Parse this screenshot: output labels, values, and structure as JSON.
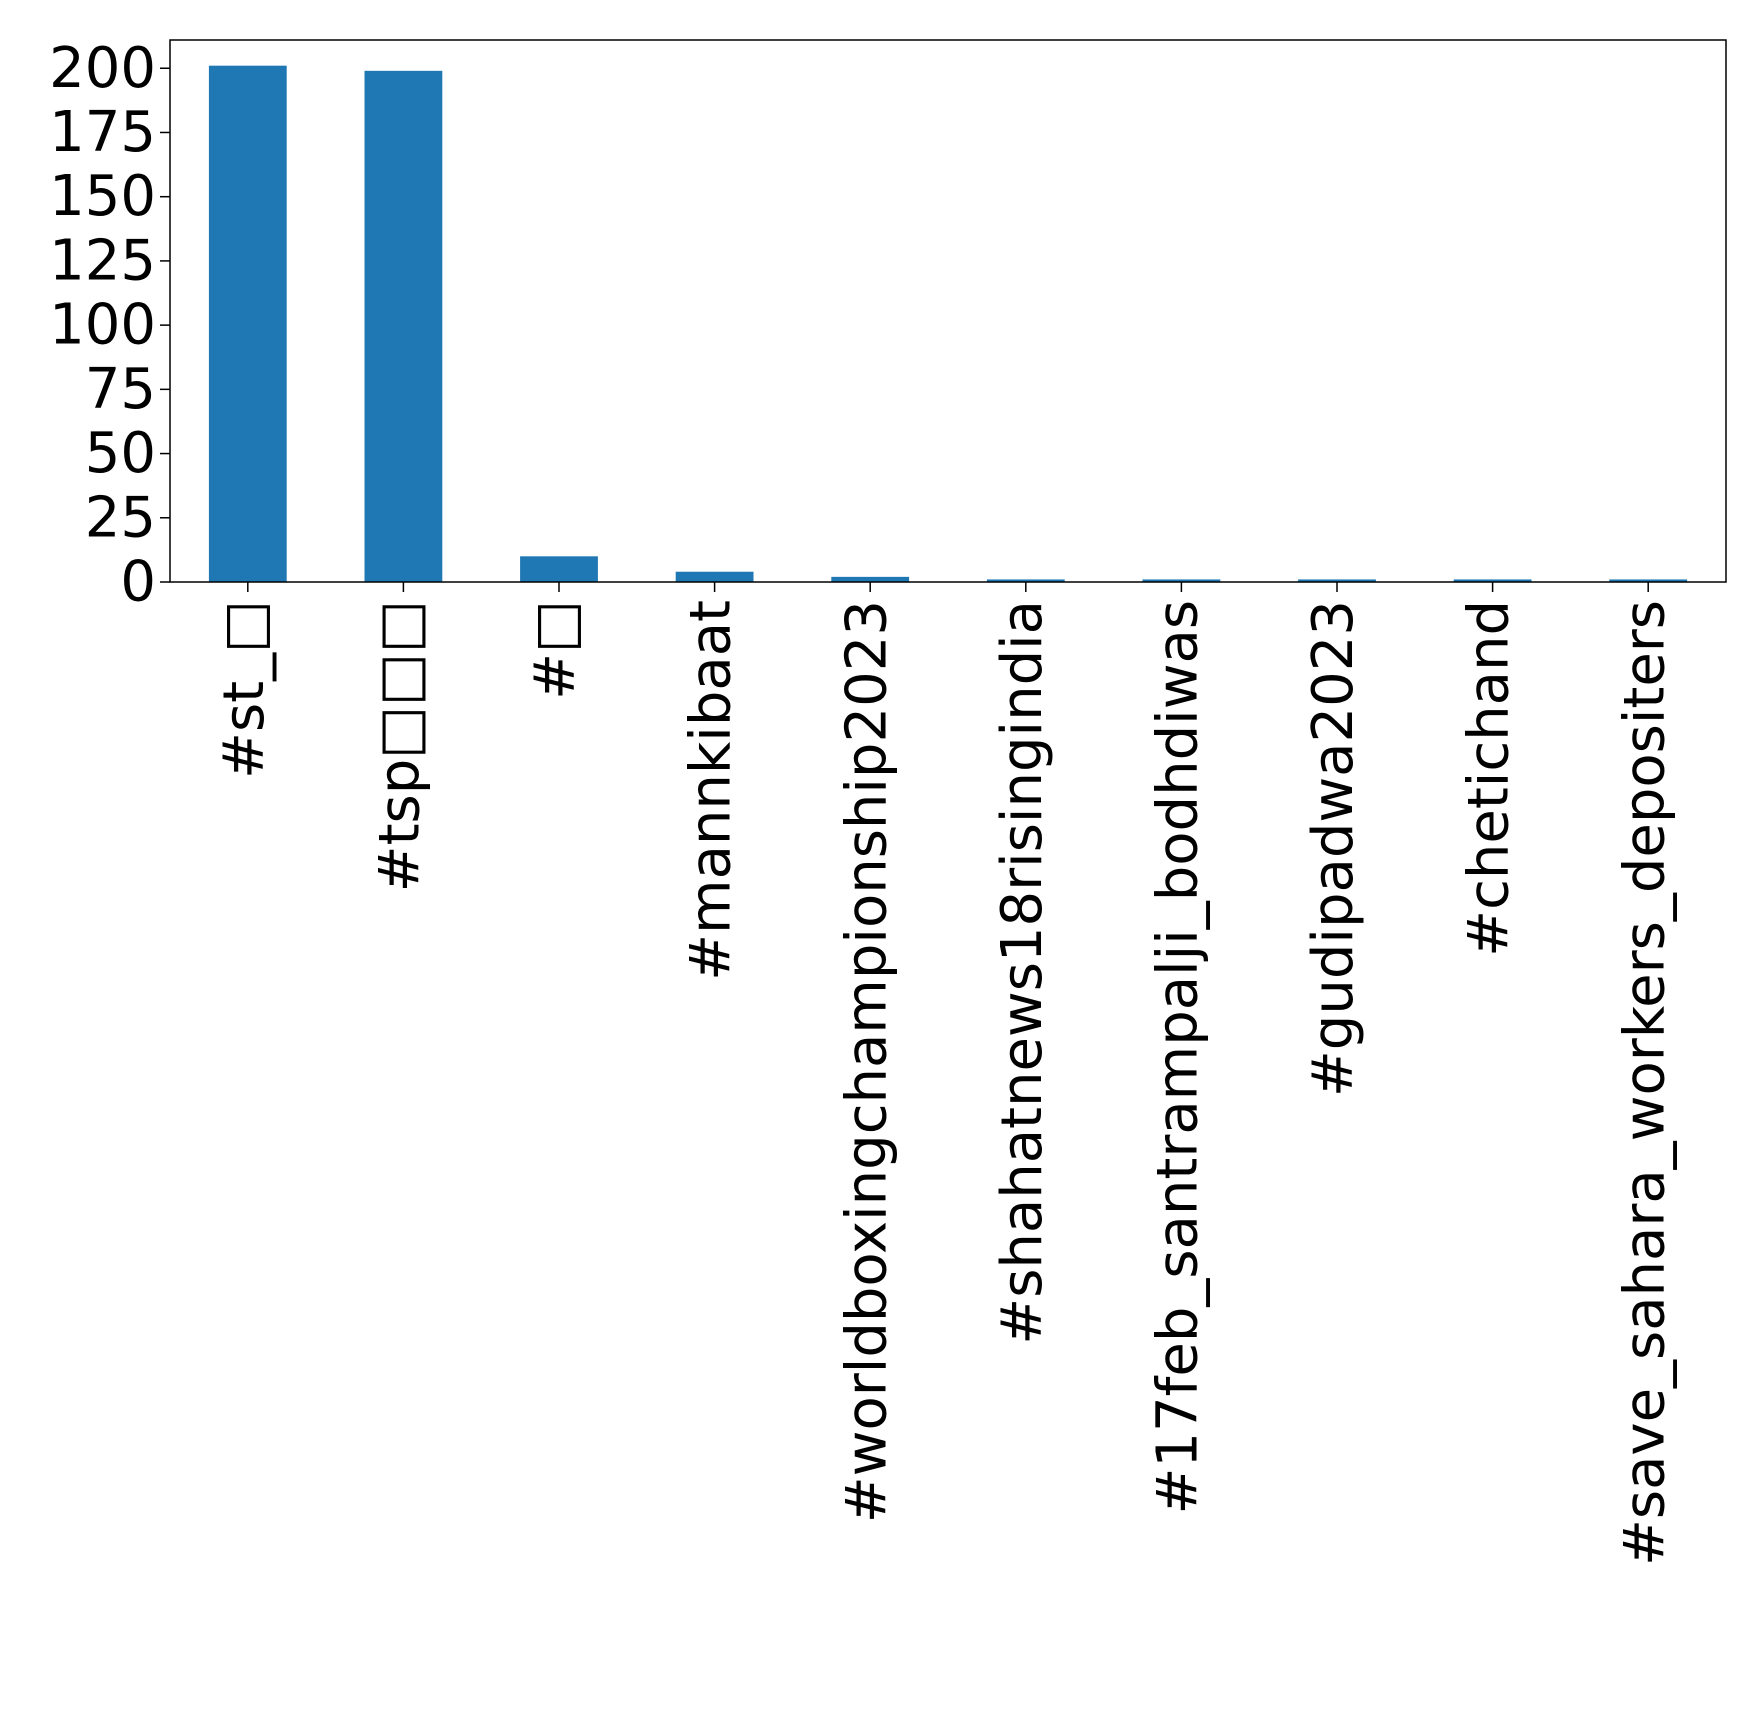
{
  "chart_data": {
    "type": "bar",
    "title": "",
    "xlabel": "",
    "ylabel": "",
    "categories": [
      "#st_□",
      "#tsp□□□",
      "#□",
      "#mannkibaat",
      "#worldboxingchampionship2023",
      "#shahatnews18risingindia",
      "#17feb_santrampalji_bodhdiwas",
      "#gudipadwa2023",
      "#chetichand",
      "#save_sahara_workers_depositers"
    ],
    "values": [
      201,
      199,
      10,
      4,
      2,
      1,
      1,
      1,
      1,
      1
    ],
    "ylim": [
      0,
      211
    ],
    "yticks": [
      0,
      25,
      50,
      75,
      100,
      125,
      150,
      175,
      200
    ],
    "grid": false,
    "legend": "none",
    "bar_color": "#1f77b4"
  }
}
